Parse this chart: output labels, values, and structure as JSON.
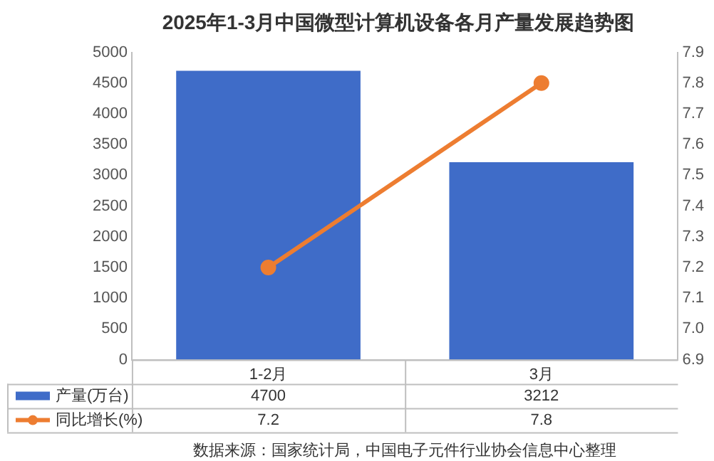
{
  "chart_data": {
    "type": "bar",
    "title": "2025年1-3月中国微型计算机设备各月产量发展趋势图",
    "categories": [
      "1-2月",
      "3月"
    ],
    "series": [
      {
        "name": "产量(万台)",
        "color": "#3f6cc8",
        "values": [
          4700,
          3212
        ]
      },
      {
        "name": "同比增长(%)",
        "type": "line",
        "axis": "y2",
        "color": "#ed7d31",
        "values": [
          7.2,
          7.8
        ]
      }
    ],
    "ylim": [
      0,
      5000
    ],
    "yticks": [
      0,
      500,
      1000,
      1500,
      2000,
      2500,
      3000,
      3500,
      4000,
      4500,
      5000
    ],
    "y2lim": [
      6.9,
      7.9
    ],
    "y2ticks": [
      {
        "value": 6.9,
        "label": "6.9"
      },
      {
        "value": 7.0,
        "label": "7.0"
      },
      {
        "value": 7.1,
        "label": "7.1"
      },
      {
        "value": 7.2,
        "label": "7.2"
      },
      {
        "value": 7.3,
        "label": "7.3"
      },
      {
        "value": 7.4,
        "label": "7.4"
      },
      {
        "value": 7.5,
        "label": "7.5"
      },
      {
        "value": 7.6,
        "label": "7.6"
      },
      {
        "value": 7.7,
        "label": "7.7"
      },
      {
        "value": 7.8,
        "label": "7.8"
      },
      {
        "value": 7.9,
        "label": "7.9"
      }
    ],
    "grid": false,
    "legend": "bottom left",
    "marker": "circle",
    "line_style": "solid",
    "data_labels": true,
    "annotations": [
      "数据来源：国家统计局，中国电子元件行业协会信息中心整理"
    ]
  }
}
